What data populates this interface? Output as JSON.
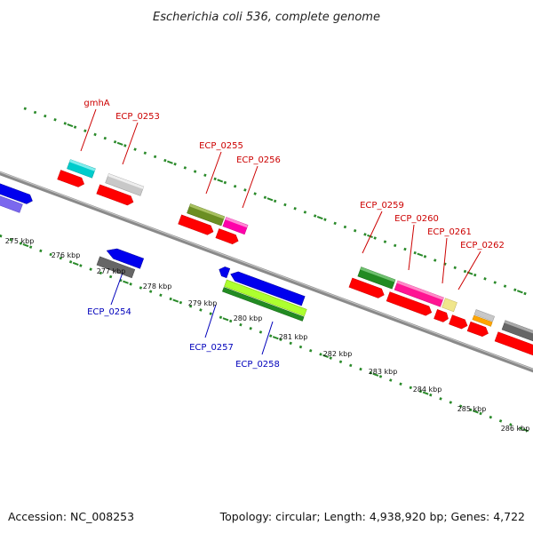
{
  "title": "Escherichia coli 536, complete genome",
  "footer": {
    "accession": "Accession: NC_008253",
    "summary": "Topology: circular; Length: 4,938,920 bp; Genes: 4,722"
  },
  "colors": {
    "forward_label": "#cc0000",
    "reverse_label": "#0000bb",
    "backbone": "#8c8c8c",
    "scale_dots": "#2a8a2a",
    "cds": "#ff0000"
  },
  "scale_ticks": [
    "275 kbp",
    "276 kbp",
    "277 kbp",
    "278 kbp",
    "279 kbp",
    "280 kbp",
    "281 kbp",
    "282 kbp",
    "283 kbp",
    "284 kbp",
    "285 kbp",
    "286 kbp"
  ],
  "forward_labels": [
    "gmhA",
    "ECP_0253",
    "ECP_0255",
    "ECP_0256",
    "ECP_0259",
    "ECP_0260",
    "ECP_0261",
    "ECP_0262"
  ],
  "reverse_labels": [
    "ECP_0254",
    "ECP_0257",
    "ECP_0258"
  ]
}
